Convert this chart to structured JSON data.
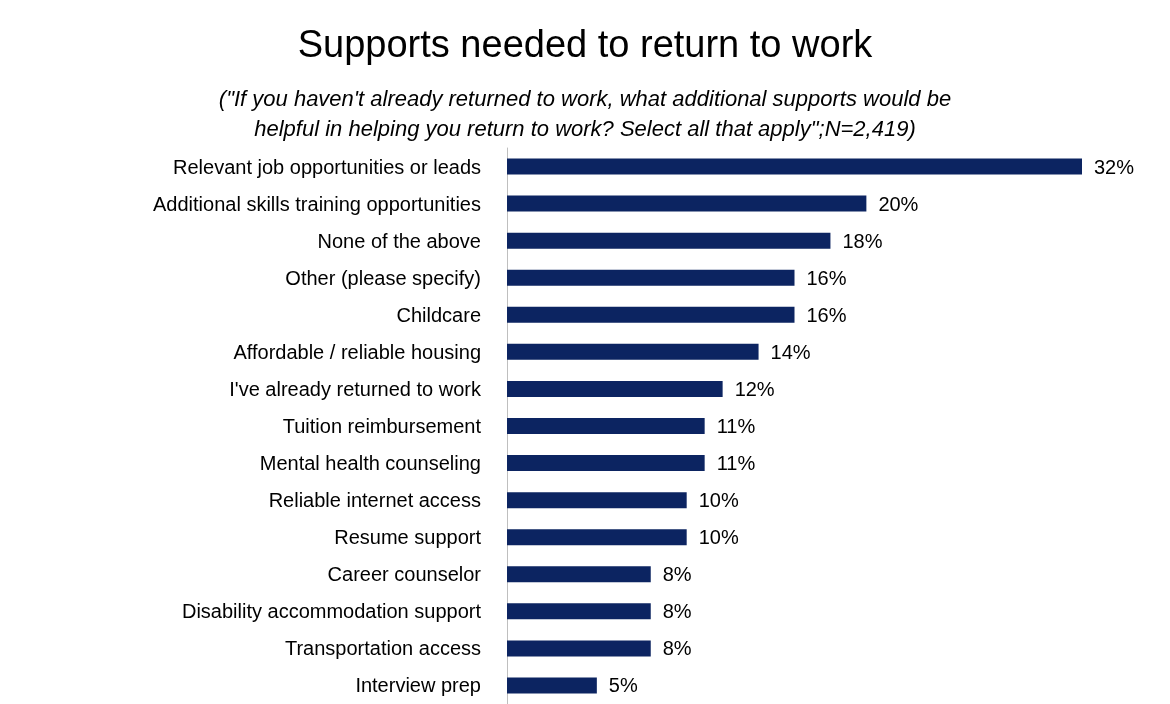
{
  "chart_data": {
    "type": "bar",
    "orientation": "horizontal",
    "title": "Supports needed to return to work",
    "subtitle": "(\"If you haven't already returned to work, what additional supports would be\nhelpful in helping you return to work? Select all that apply\";N=2,419)",
    "categories": [
      "Relevant job opportunities or leads",
      "Additional skills training opportunities",
      "None of the above",
      "Other (please specify)",
      "Childcare",
      "Affordable / reliable housing",
      "I've already returned to work",
      "Tuition reimbursement",
      "Mental health counseling",
      "Reliable internet access",
      "Resume support",
      "Career counselor",
      "Disability accommodation support",
      "Transportation access",
      "Interview prep"
    ],
    "values": [
      32,
      20,
      18,
      16,
      16,
      14,
      12,
      11,
      11,
      10,
      10,
      8,
      8,
      8,
      5
    ],
    "value_labels": [
      "32%",
      "20%",
      "18%",
      "16%",
      "16%",
      "14%",
      "12%",
      "11%",
      "11%",
      "10%",
      "10%",
      "8%",
      "8%",
      "8%",
      "5%"
    ],
    "color": "#0c2461"
  }
}
